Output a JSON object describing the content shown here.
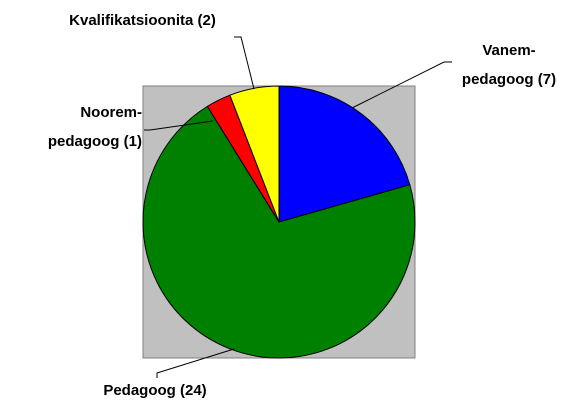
{
  "chart_data": {
    "type": "pie",
    "categories": [
      "Vanem-pedagoog",
      "Pedagoog",
      "Noorem-pedagoog",
      "Kvalifikatsioonita"
    ],
    "values": [
      7,
      24,
      1,
      2
    ],
    "value_labels": [
      "(7)",
      "(24)",
      "(1)",
      "(2)"
    ],
    "colors": [
      "#0000ff",
      "#008000",
      "#ff0000",
      "#ffff00"
    ]
  }
}
